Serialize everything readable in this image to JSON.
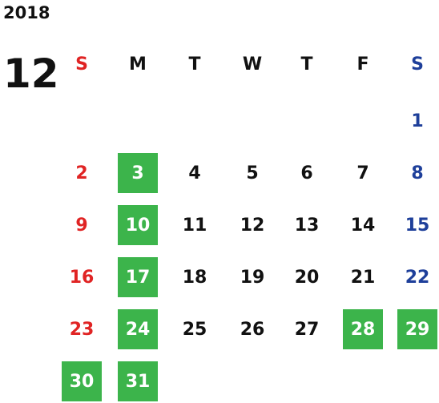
{
  "year": "2018",
  "month": "12",
  "weekdays": [
    "S",
    "M",
    "T",
    "W",
    "T",
    "F",
    "S"
  ],
  "weekday_colors": [
    "#e02424",
    "#111111",
    "#111111",
    "#111111",
    "#111111",
    "#111111",
    "#1e3f9a"
  ],
  "highlight_color": "#3cb44b",
  "weeks": [
    [
      null,
      null,
      null,
      null,
      null,
      null,
      {
        "day": 1
      }
    ],
    [
      {
        "day": 2
      },
      {
        "day": 3,
        "highlighted": true
      },
      {
        "day": 4
      },
      {
        "day": 5
      },
      {
        "day": 6
      },
      {
        "day": 7
      },
      {
        "day": 8
      }
    ],
    [
      {
        "day": 9
      },
      {
        "day": 10,
        "highlighted": true
      },
      {
        "day": 11
      },
      {
        "day": 12
      },
      {
        "day": 13
      },
      {
        "day": 14
      },
      {
        "day": 15
      }
    ],
    [
      {
        "day": 16
      },
      {
        "day": 17,
        "highlighted": true
      },
      {
        "day": 18
      },
      {
        "day": 19
      },
      {
        "day": 20
      },
      {
        "day": 21
      },
      {
        "day": 22
      }
    ],
    [
      {
        "day": 23
      },
      {
        "day": 24,
        "highlighted": true
      },
      {
        "day": 25
      },
      {
        "day": 26
      },
      {
        "day": 27
      },
      {
        "day": 28,
        "highlighted": true
      },
      {
        "day": 29,
        "highlighted": true
      }
    ],
    [
      {
        "day": 30,
        "highlighted": true
      },
      {
        "day": 31,
        "highlighted": true
      },
      null,
      null,
      null,
      null,
      null
    ]
  ]
}
